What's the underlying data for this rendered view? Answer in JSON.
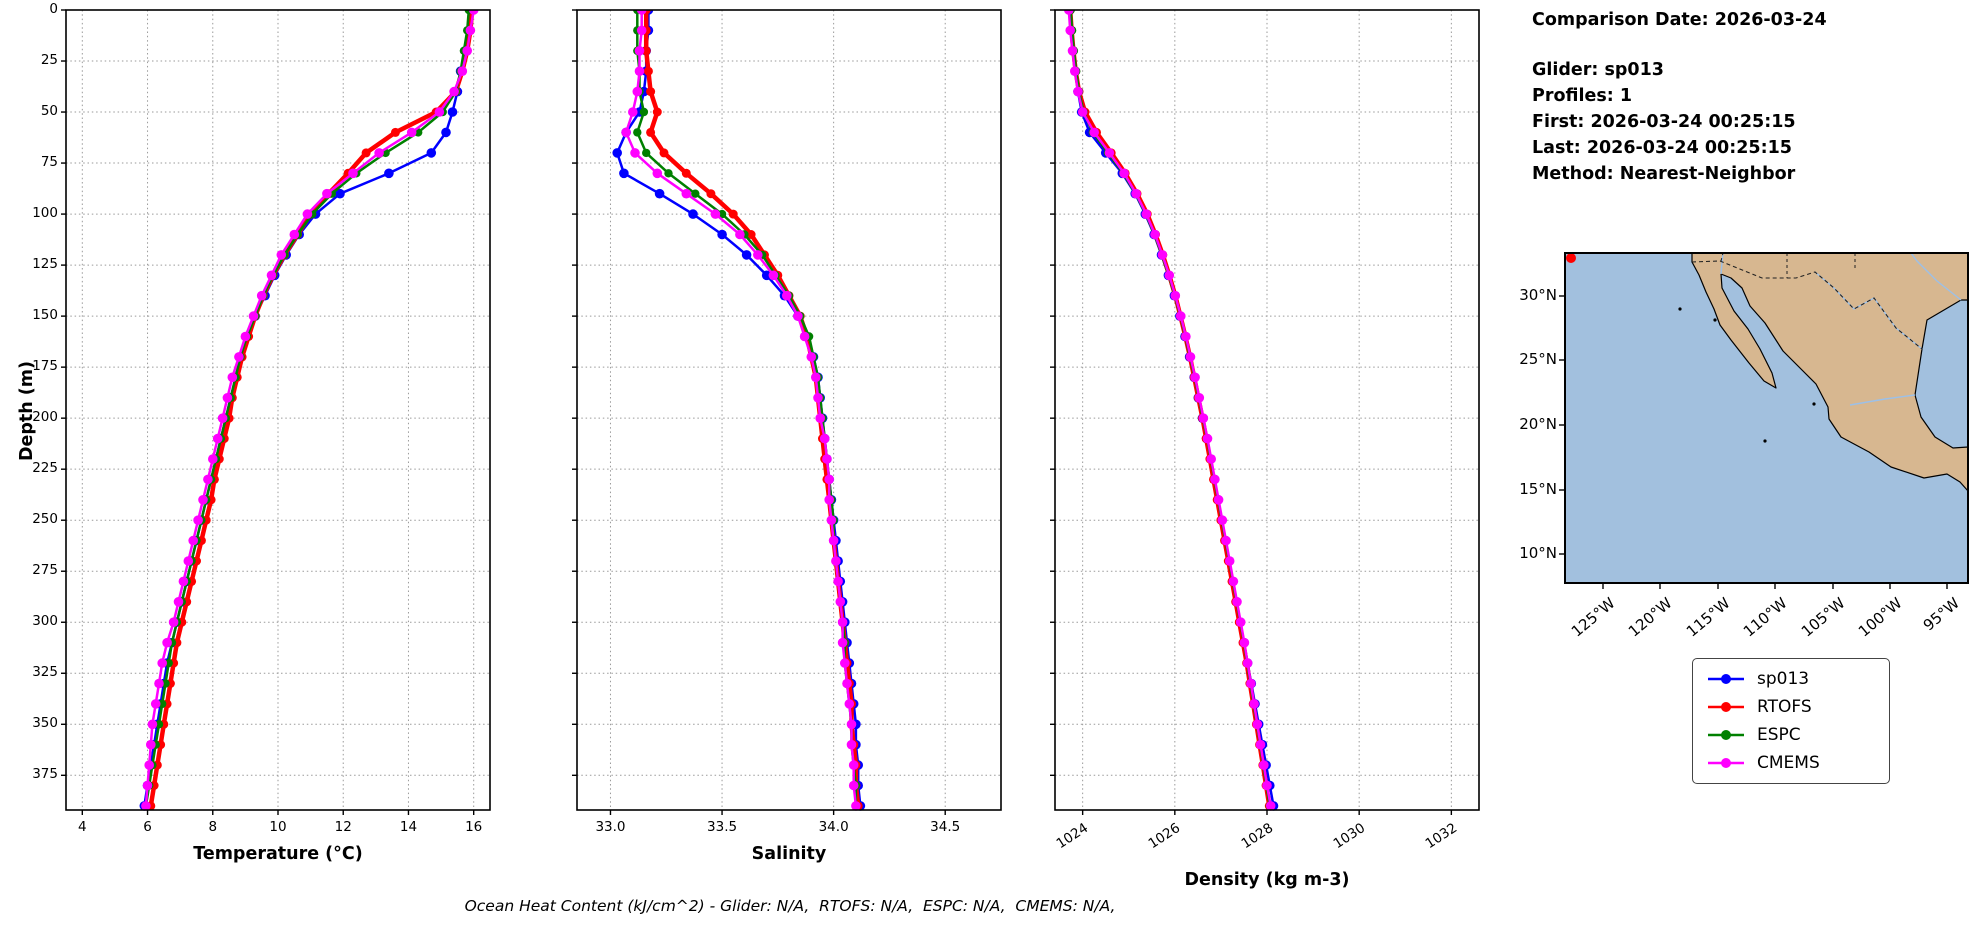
{
  "info_panel": {
    "comparison_date": "Comparison Date: 2026-03-24",
    "lines": [
      "Glider: sp013",
      "Profiles: 1",
      "First: 2026-03-24 00:25:15",
      "Last: 2026-03-24 00:25:15",
      "Method: Nearest-Neighbor"
    ]
  },
  "footer": {
    "ohc_note": "Ocean Heat Content (kJ/cm^2) - Glider: N/A,  RTOFS: N/A,  ESPC: N/A,  CMEMS: N/A,"
  },
  "legend": {
    "entries": [
      {
        "label": "sp013",
        "color": "#0000ff"
      },
      {
        "label": "RTOFS",
        "color": "#ff0000"
      },
      {
        "label": "ESPC",
        "color": "#008000"
      },
      {
        "label": "CMEMS",
        "color": "#ff00ff"
      }
    ]
  },
  "map": {
    "lat_ticks": [
      "30°N",
      "25°N",
      "20°N",
      "15°N",
      "10°N"
    ],
    "lon_ticks": [
      "125°W",
      "120°W",
      "115°W",
      "110°W",
      "105°W",
      "100°W",
      "95°W"
    ],
    "ocean_color": "#a2c0de",
    "land_color": "#d7b790",
    "marker_color": "#ff0000"
  },
  "chart_data": {
    "type": "line",
    "ylabel": "Depth (m)",
    "ylim": [
      0,
      392
    ],
    "yticks": [
      0,
      25,
      50,
      75,
      100,
      125,
      150,
      175,
      200,
      225,
      250,
      275,
      300,
      325,
      350,
      375
    ],
    "depths": [
      0,
      10,
      20,
      30,
      40,
      50,
      60,
      70,
      80,
      90,
      100,
      110,
      120,
      130,
      140,
      150,
      160,
      170,
      180,
      190,
      200,
      210,
      220,
      230,
      240,
      250,
      260,
      270,
      280,
      290,
      300,
      310,
      320,
      330,
      340,
      350,
      360,
      370,
      380,
      390
    ],
    "panels": [
      {
        "xlabel": "Temperature (°C)",
        "xlim": [
          3.5,
          16.5
        ],
        "xticks": [
          4,
          6,
          8,
          10,
          12,
          14,
          16
        ],
        "xtick_labels": [
          "4",
          "6",
          "8",
          "10",
          "12",
          "14",
          "16"
        ],
        "rotate_xticks": false,
        "series": [
          {
            "name": "sp013",
            "color": "#0000ff",
            "values": [
              15.9,
              15.85,
              15.75,
              15.6,
              15.5,
              15.35,
              15.15,
              14.7,
              13.4,
              11.9,
              11.15,
              10.65,
              10.25,
              9.9,
              9.6,
              9.3,
              9.05,
              8.85,
              8.7,
              8.55,
              8.4,
              8.25,
              8.1,
              7.95,
              7.8,
              7.65,
              7.5,
              7.35,
              7.2,
              7.05,
              6.9,
              6.75,
              6.6,
              6.5,
              6.4,
              6.3,
              6.2,
              6.1,
              6.0,
              5.9
            ]
          },
          {
            "name": "RTOFS",
            "color": "#ff0000",
            "values": [
              15.95,
              15.9,
              15.8,
              15.65,
              15.45,
              14.85,
              13.6,
              12.7,
              12.15,
              11.55,
              11.0,
              10.6,
              10.2,
              9.85,
              9.55,
              9.3,
              9.1,
              8.9,
              8.75,
              8.6,
              8.5,
              8.35,
              8.2,
              8.05,
              7.95,
              7.8,
              7.65,
              7.5,
              7.35,
              7.2,
              7.05,
              6.9,
              6.8,
              6.7,
              6.6,
              6.5,
              6.4,
              6.3,
              6.2,
              6.1
            ]
          },
          {
            "name": "ESPC",
            "color": "#008000",
            "values": [
              15.85,
              15.8,
              15.7,
              15.6,
              15.45,
              15.05,
              14.3,
              13.3,
              12.4,
              11.65,
              11.05,
              10.6,
              10.2,
              9.85,
              9.55,
              9.3,
              9.05,
              8.85,
              8.7,
              8.55,
              8.4,
              8.25,
              8.1,
              7.95,
              7.8,
              7.65,
              7.5,
              7.35,
              7.2,
              7.05,
              6.9,
              6.75,
              6.65,
              6.55,
              6.45,
              6.35,
              6.25,
              6.15,
              6.05,
              5.95
            ]
          },
          {
            "name": "CMEMS",
            "color": "#ff00ff",
            "values": [
              16.0,
              15.9,
              15.8,
              15.65,
              15.4,
              14.95,
              14.1,
              13.1,
              12.3,
              11.5,
              10.9,
              10.5,
              10.1,
              9.8,
              9.5,
              9.25,
              9.0,
              8.8,
              8.6,
              8.45,
              8.3,
              8.15,
              8.0,
              7.85,
              7.7,
              7.55,
              7.4,
              7.25,
              7.1,
              6.95,
              6.8,
              6.6,
              6.45,
              6.35,
              6.25,
              6.15,
              6.1,
              6.05,
              6.0,
              5.95
            ]
          }
        ]
      },
      {
        "xlabel": "Salinity",
        "xlim": [
          32.85,
          34.75
        ],
        "xticks": [
          33.0,
          33.5,
          34.0,
          34.5
        ],
        "xtick_labels": [
          "33.0",
          "33.5",
          "34.0",
          "34.5"
        ],
        "rotate_xticks": false,
        "series": [
          {
            "name": "sp013",
            "color": "#0000ff",
            "values": [
              33.17,
              33.17,
              33.16,
              33.16,
              33.15,
              33.13,
              33.07,
              33.03,
              33.06,
              33.22,
              33.37,
              33.5,
              33.61,
              33.7,
              33.78,
              33.84,
              33.88,
              33.91,
              33.93,
              33.94,
              33.95,
              33.96,
              33.97,
              33.98,
              33.99,
              34.0,
              34.01,
              34.02,
              34.03,
              34.04,
              34.05,
              34.06,
              34.07,
              34.08,
              34.09,
              34.1,
              34.1,
              34.11,
              34.11,
              34.12
            ]
          },
          {
            "name": "RTOFS",
            "color": "#ff0000",
            "values": [
              33.16,
              33.16,
              33.16,
              33.17,
              33.18,
              33.21,
              33.18,
              33.24,
              33.34,
              33.45,
              33.55,
              33.63,
              33.69,
              33.75,
              33.8,
              33.85,
              33.88,
              33.9,
              33.92,
              33.93,
              33.94,
              33.95,
              33.96,
              33.97,
              33.98,
              33.99,
              34.0,
              34.01,
              34.02,
              34.03,
              34.04,
              34.05,
              34.06,
              34.07,
              34.08,
              34.08,
              34.09,
              34.1,
              34.1,
              34.11
            ]
          },
          {
            "name": "ESPC",
            "color": "#008000",
            "values": [
              33.12,
              33.12,
              33.12,
              33.13,
              33.13,
              33.15,
              33.12,
              33.16,
              33.26,
              33.38,
              33.5,
              33.6,
              33.68,
              33.74,
              33.8,
              33.85,
              33.89,
              33.91,
              33.93,
              33.94,
              33.95,
              33.96,
              33.97,
              33.98,
              33.99,
              34.0,
              34.0,
              34.01,
              34.02,
              34.03,
              34.04,
              34.05,
              34.05,
              34.06,
              34.07,
              34.08,
              34.08,
              34.09,
              34.1,
              34.1
            ]
          },
          {
            "name": "CMEMS",
            "color": "#ff00ff",
            "values": [
              33.14,
              33.14,
              33.13,
              33.13,
              33.12,
              33.1,
              33.07,
              33.11,
              33.21,
              33.34,
              33.47,
              33.58,
              33.66,
              33.73,
              33.79,
              33.84,
              33.87,
              33.9,
              33.92,
              33.93,
              33.94,
              33.96,
              33.97,
              33.98,
              33.98,
              33.99,
              34.0,
              34.01,
              34.02,
              34.03,
              34.04,
              34.04,
              34.05,
              34.06,
              34.07,
              34.08,
              34.08,
              34.09,
              34.09,
              34.1
            ]
          }
        ]
      },
      {
        "xlabel": "Density (kg m-3)",
        "xlim": [
          1023.4,
          1032.6
        ],
        "xticks": [
          1024,
          1026,
          1028,
          1030,
          1032
        ],
        "xtick_labels": [
          "1024",
          "1026",
          "1028",
          "1030",
          "1032"
        ],
        "rotate_xticks": true,
        "series": [
          {
            "name": "sp013",
            "color": "#0000ff",
            "values": [
              1023.72,
              1023.75,
              1023.79,
              1023.84,
              1023.9,
              1023.98,
              1024.15,
              1024.5,
              1024.86,
              1025.14,
              1025.36,
              1025.55,
              1025.71,
              1025.86,
              1025.99,
              1026.11,
              1026.22,
              1026.32,
              1026.42,
              1026.51,
              1026.6,
              1026.69,
              1026.78,
              1026.86,
              1026.94,
              1027.02,
              1027.1,
              1027.18,
              1027.26,
              1027.34,
              1027.42,
              1027.5,
              1027.58,
              1027.66,
              1027.74,
              1027.82,
              1027.9,
              1027.98,
              1028.06,
              1028.14
            ]
          },
          {
            "name": "RTOFS",
            "color": "#ff0000",
            "values": [
              1023.73,
              1023.76,
              1023.8,
              1023.85,
              1023.92,
              1024.05,
              1024.3,
              1024.62,
              1024.92,
              1025.18,
              1025.4,
              1025.58,
              1025.74,
              1025.88,
              1026.01,
              1026.12,
              1026.23,
              1026.33,
              1026.42,
              1026.51,
              1026.6,
              1026.68,
              1026.76,
              1026.84,
              1026.92,
              1027.0,
              1027.08,
              1027.16,
              1027.24,
              1027.32,
              1027.4,
              1027.48,
              1027.56,
              1027.63,
              1027.7,
              1027.77,
              1027.84,
              1027.91,
              1027.98,
              1028.05
            ]
          },
          {
            "name": "ESPC",
            "color": "#008000",
            "values": [
              1023.74,
              1023.77,
              1023.81,
              1023.86,
              1023.92,
              1024.02,
              1024.22,
              1024.55,
              1024.88,
              1025.15,
              1025.37,
              1025.56,
              1025.72,
              1025.87,
              1026.0,
              1026.12,
              1026.23,
              1026.33,
              1026.43,
              1026.52,
              1026.61,
              1026.7,
              1026.78,
              1026.86,
              1026.94,
              1027.02,
              1027.1,
              1027.18,
              1027.26,
              1027.34,
              1027.42,
              1027.5,
              1027.57,
              1027.64,
              1027.71,
              1027.78,
              1027.85,
              1027.92,
              1027.99,
              1028.06
            ]
          },
          {
            "name": "CMEMS",
            "color": "#ff00ff",
            "values": [
              1023.7,
              1023.73,
              1023.78,
              1023.83,
              1023.9,
              1024.0,
              1024.25,
              1024.58,
              1024.9,
              1025.16,
              1025.38,
              1025.57,
              1025.73,
              1025.88,
              1026.01,
              1026.13,
              1026.24,
              1026.34,
              1026.44,
              1026.53,
              1026.62,
              1026.71,
              1026.79,
              1026.87,
              1026.95,
              1027.03,
              1027.11,
              1027.19,
              1027.27,
              1027.35,
              1027.43,
              1027.51,
              1027.58,
              1027.65,
              1027.72,
              1027.79,
              1027.86,
              1027.93,
              1028.0,
              1028.08
            ]
          }
        ]
      }
    ]
  }
}
